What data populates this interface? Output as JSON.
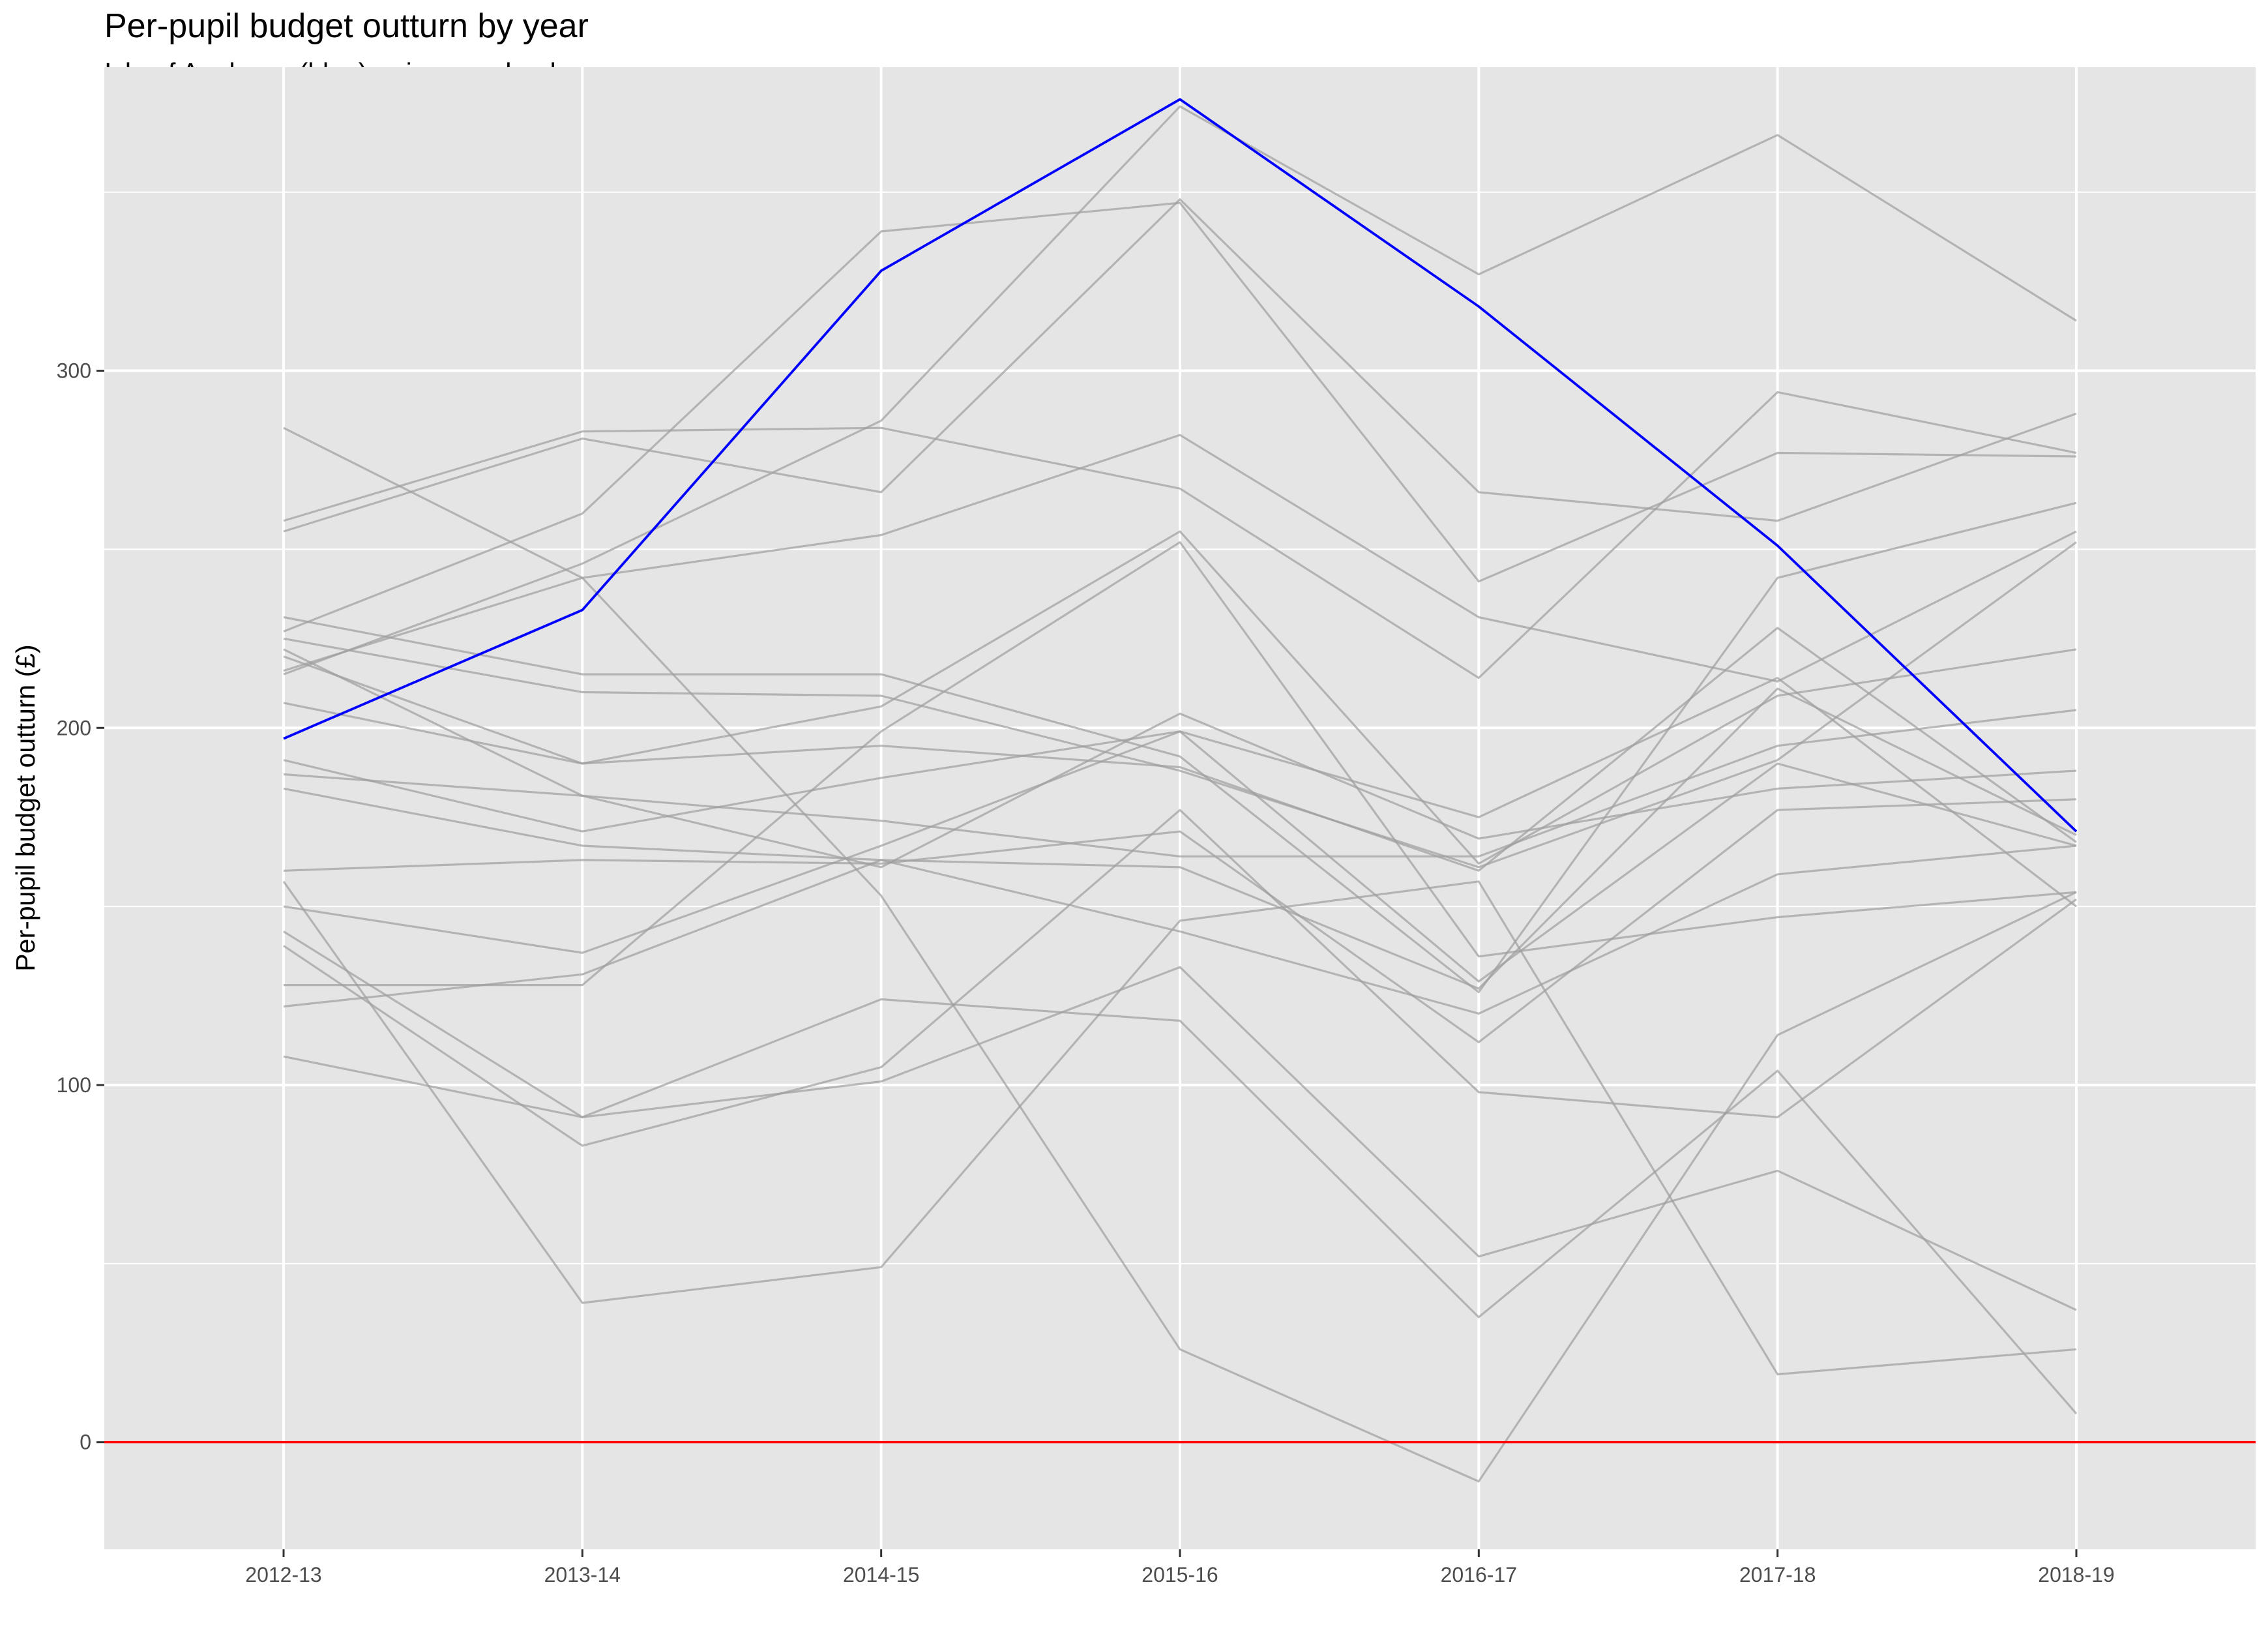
{
  "chart_data": {
    "type": "line",
    "title": "Per-pupil budget outturn by year",
    "subtitle": "Isle of Anglesey (blue), primary schools",
    "xlabel": "",
    "ylabel": "Per-pupil budget outturn (£)",
    "categories": [
      "2012-13",
      "2013-14",
      "2014-15",
      "2015-16",
      "2016-17",
      "2017-18",
      "2018-19"
    ],
    "ylim": [
      -30,
      385
    ],
    "yticks": [
      0,
      100,
      200,
      300
    ],
    "grid": true,
    "reference_line": {
      "y": 0,
      "color": "#ff0000"
    },
    "colors": {
      "highlight": "#0000ff",
      "other": "#9e9e9e",
      "panel": "#e5e5e5",
      "grid": "#ffffff"
    },
    "highlight": {
      "name": "Isle of Anglesey",
      "values": [
        197,
        233,
        328,
        376,
        318,
        251,
        171
      ]
    },
    "series": [
      {
        "values": [
          284,
          242,
          153,
          26,
          -11,
          114,
          154
        ]
      },
      {
        "values": [
          258,
          283,
          284,
          267,
          214,
          294,
          277
        ]
      },
      {
        "values": [
          255,
          281,
          266,
          348,
          266,
          258,
          288
        ]
      },
      {
        "values": [
          227,
          260,
          339,
          347,
          241,
          277,
          276
        ]
      },
      {
        "values": [
          216,
          242,
          254,
          282,
          231,
          213,
          255
        ]
      },
      {
        "values": [
          215,
          246,
          286,
          374,
          327,
          366,
          314
        ]
      },
      {
        "values": [
          231,
          215,
          215,
          192,
          126,
          242,
          263
        ]
      },
      {
        "values": [
          225,
          210,
          209,
          188,
          161,
          191,
          252
        ]
      },
      {
        "values": [
          220,
          190,
          206,
          255,
          162,
          209,
          222
        ]
      },
      {
        "values": [
          207,
          190,
          195,
          189,
          160,
          228,
          168
        ]
      },
      {
        "values": [
          191,
          171,
          186,
          199,
          175,
          214,
          150
        ]
      },
      {
        "values": [
          187,
          181,
          174,
          164,
          164,
          195,
          205
        ]
      },
      {
        "values": [
          183,
          167,
          163,
          161,
          127,
          211,
          170
        ]
      },
      {
        "values": [
          222,
          181,
          161,
          204,
          169,
          183,
          188
        ]
      },
      {
        "values": [
          160,
          163,
          162,
          171,
          112,
          177,
          180
        ]
      },
      {
        "values": [
          150,
          137,
          167,
          199,
          129,
          190,
          167
        ]
      },
      {
        "values": [
          143,
          91,
          124,
          118,
          35,
          104,
          8
        ]
      },
      {
        "values": [
          139,
          83,
          105,
          177,
          98,
          91,
          152
        ]
      },
      {
        "values": [
          128,
          128,
          199,
          252,
          136,
          147,
          154
        ]
      },
      {
        "values": [
          122,
          131,
          163,
          143,
          120,
          159,
          167
        ]
      },
      {
        "values": [
          108,
          91,
          101,
          133,
          52,
          76,
          37
        ]
      },
      {
        "values": [
          157,
          39,
          49,
          146,
          157,
          19,
          26
        ]
      }
    ]
  }
}
